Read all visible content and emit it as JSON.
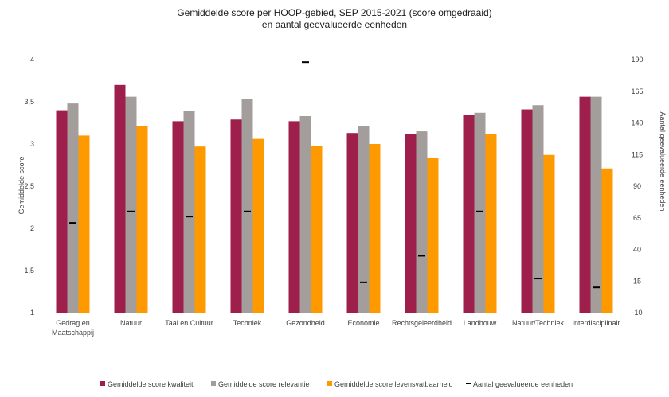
{
  "chart_data": {
    "type": "bar",
    "title_line1": "Gemiddelde score per HOOP-gebied, SEP 2015-2021 (score omgedraaid)",
    "title_line2": "en aantal geevalueerde eenheden",
    "ylabel": "Gemiddelde score",
    "y2label": "Aantal geevalueerde eenheden",
    "ylim": [
      1,
      4
    ],
    "y2lim": [
      -10,
      190
    ],
    "yticks": [
      "1",
      "1,5",
      "2",
      "2,5",
      "3",
      "3,5",
      "4"
    ],
    "y2ticks": [
      "-10",
      "15",
      "40",
      "65",
      "90",
      "115",
      "140",
      "165",
      "190"
    ],
    "categories": [
      [
        "Gedrag en",
        "Maatschappij"
      ],
      [
        "Natuur"
      ],
      [
        "Taal en Cultuur"
      ],
      [
        "Techniek"
      ],
      [
        "Gezondheid"
      ],
      [
        "Economie"
      ],
      [
        "Rechtsgeleerdheid"
      ],
      [
        "Landbouw"
      ],
      [
        "Natuur/Techniek"
      ],
      [
        "Interdisciplinair"
      ]
    ],
    "series": [
      {
        "name": "Gemiddelde score kwaliteit",
        "color": "#9e1f4b",
        "values": [
          3.4,
          3.7,
          3.27,
          3.29,
          3.27,
          3.13,
          3.12,
          3.34,
          3.41,
          3.56
        ]
      },
      {
        "name": "Gemiddelde score relevantie",
        "color": "#a39e9b",
        "values": [
          3.48,
          3.56,
          3.39,
          3.53,
          3.33,
          3.21,
          3.15,
          3.37,
          3.46,
          3.56
        ]
      },
      {
        "name": "Gemiddelde score levensvatbaarheid",
        "color": "#ff9900",
        "values": [
          3.1,
          3.21,
          2.97,
          3.06,
          2.98,
          3.0,
          2.84,
          3.12,
          2.87,
          2.71
        ]
      }
    ],
    "markers": {
      "name": "Aantal geevalueerde eenheden",
      "color": "#000000",
      "values": [
        61,
        70,
        66,
        70,
        188,
        14,
        35,
        70,
        17,
        10
      ]
    }
  }
}
